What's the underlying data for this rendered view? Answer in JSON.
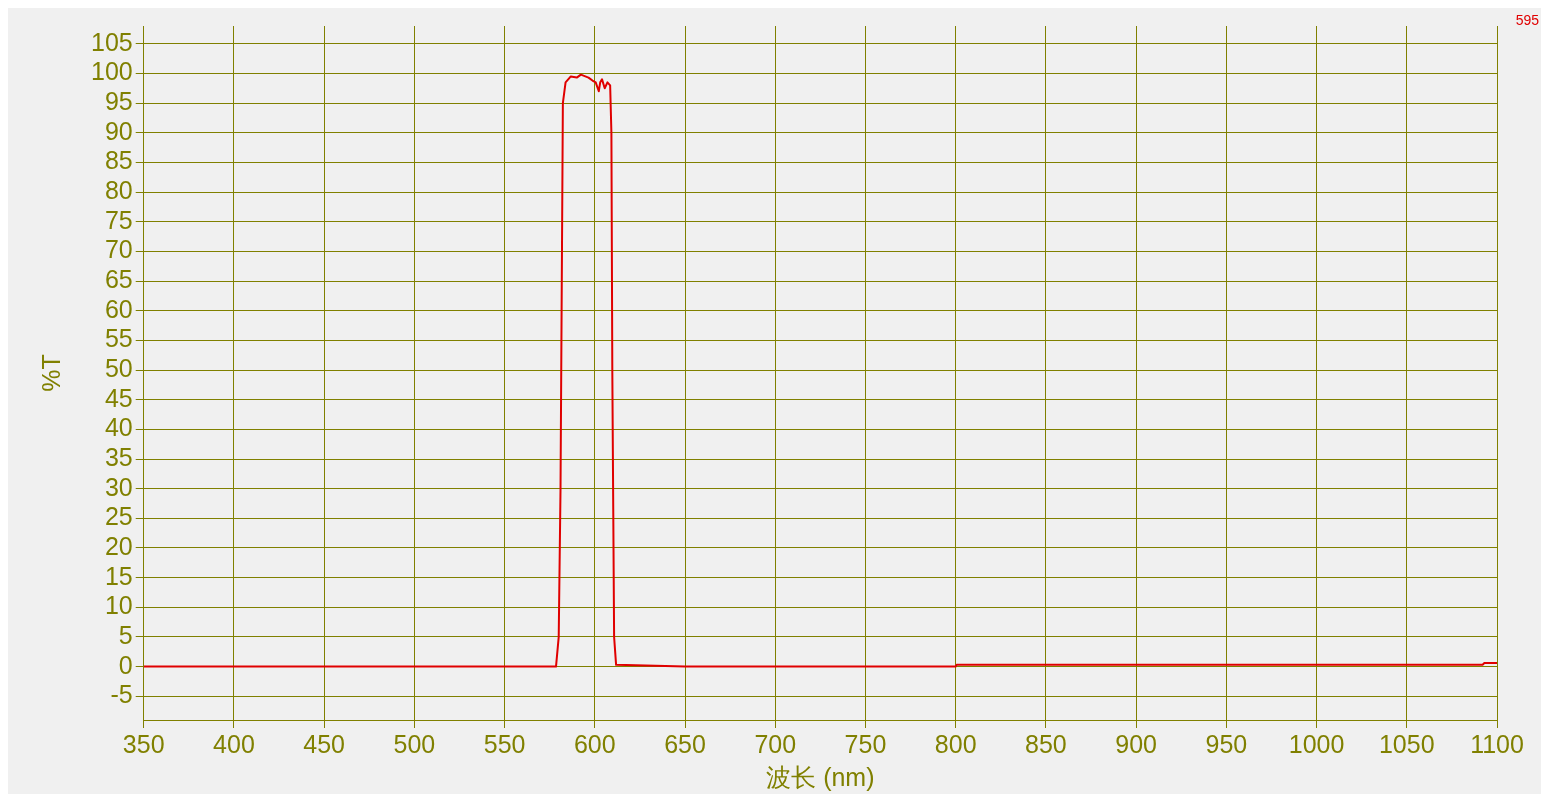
{
  "chart_data": {
    "type": "line",
    "xlabel": "波长 (nm)",
    "ylabel": "%T",
    "xlim": [
      350,
      1100
    ],
    "xticks": [
      350,
      400,
      450,
      500,
      550,
      600,
      650,
      700,
      750,
      800,
      850,
      900,
      950,
      1000,
      1050,
      1100
    ],
    "ylim": [
      -9,
      108
    ],
    "yticks": [
      -5,
      0,
      5,
      10,
      15,
      20,
      25,
      30,
      35,
      40,
      45,
      50,
      55,
      60,
      65,
      70,
      75,
      80,
      85,
      90,
      95,
      100,
      105
    ],
    "grid": true,
    "legend": false,
    "marker": "none",
    "line_style": "solid",
    "series": [
      {
        "name": "595",
        "color": "#e00000",
        "x": [
          350,
          578.5,
          580,
          581,
          581.8,
          582.3,
          583.8,
          586.7,
          590,
          592.3,
          596.5,
          598.7,
          600.5,
          602.2,
          603,
          604,
          605.5,
          607,
          608.5,
          609.2,
          609.7,
          610.7,
          611.8,
          650,
          800,
          800.5,
          1092,
          1093,
          1100
        ],
        "values": [
          0,
          0,
          5,
          30,
          70,
          95,
          98.5,
          99.5,
          99.3,
          99.8,
          99.3,
          98.8,
          98.5,
          97,
          98.5,
          99,
          97.5,
          98.5,
          98,
          90,
          50,
          5,
          0.3,
          0,
          0,
          0.3,
          0.3,
          0.6,
          0.6
        ]
      }
    ]
  }
}
